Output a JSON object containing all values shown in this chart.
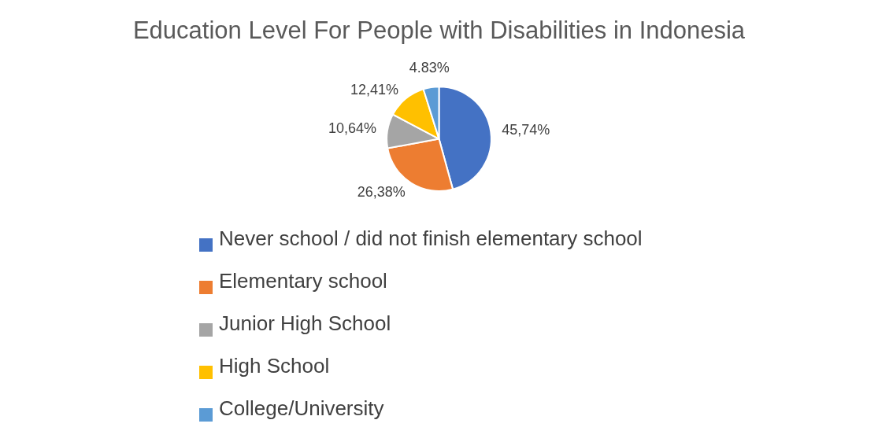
{
  "chart_data": {
    "type": "pie",
    "title": "Education Level For People with Disabilities in Indonesia",
    "categories": [
      "Never school / did not finish elementary school",
      "Elementary school",
      "Junior High School",
      "High School",
      "College/University"
    ],
    "values": [
      45.74,
      26.38,
      10.64,
      12.41,
      4.83
    ],
    "value_labels": [
      "45,74%",
      "26,38%",
      "10,64%",
      "12,41%",
      "4.83%"
    ],
    "colors": [
      "#4472c4",
      "#ed7d31",
      "#a5a5a5",
      "#ffc000",
      "#5b9bd5"
    ],
    "legend": "bottom"
  }
}
